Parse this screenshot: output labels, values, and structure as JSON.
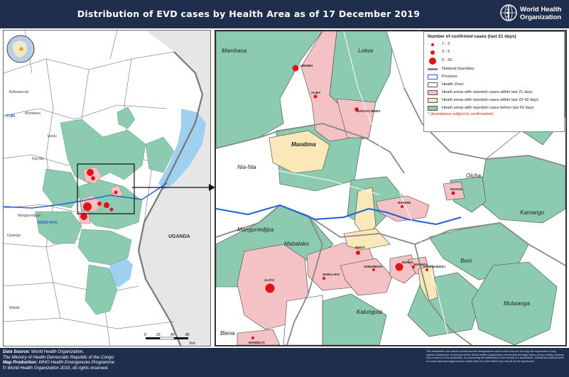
{
  "header": {
    "title": "Distribution of EVD cases by Health Area as of 17 December 2019",
    "org_line1": "World Health",
    "org_line2": "Organization"
  },
  "legend": {
    "title": "Number of confirmed cases (last 21 days)",
    "bubble_classes": [
      "1 - 2",
      "3 - 5",
      "6 - 26"
    ],
    "national_boundary": "National boundary",
    "province": "Province",
    "health_zone": "Health Zone",
    "reported_21": "Heath areas with reported cases within last 21 days",
    "reported_22_42": "Heath areas with reported cases within last 22-42 days",
    "reported_before_42": "Heath areas with reported cases before last 42 days",
    "note": "* (boundaries subject to confirmation)",
    "colors": {
      "reported_21": "#f4c2c4",
      "reported_22_42": "#fbe8b8",
      "reported_before_42": "#8dcbb1",
      "province_line": "#1f5fd1",
      "bubble": "#e01414"
    }
  },
  "inset_map": {
    "country_label": "UGANDA",
    "province_labels": [
      "ITURI",
      "NORD-KIVU"
    ],
    "place_labels": [
      "Mambasa",
      "Nia-Nia",
      "Mangurredjipa",
      "Opienge",
      "Wakile",
      "Bafwasende",
      "Epulu"
    ],
    "scale": {
      "ticks": [
        "0",
        "20",
        "40",
        "80"
      ],
      "unit": "Km"
    }
  },
  "detail_map": {
    "zone_labels": [
      "Mambasa",
      "Lolwa",
      "Mandima",
      "Nia-Nia",
      "Oicha",
      "Kamango",
      "Mangurredjipa",
      "Mabalako",
      "Beni",
      "Mutwanga",
      "Kalunguta",
      "Biena"
    ],
    "area_labels": [
      "LWEMBA",
      "ALIMA",
      "BIAKATO MINES",
      "MASOSI",
      "MAKERE",
      "BINGO",
      "SUMUMBAKI",
      "MABALAKO",
      "ALOYA",
      "BUNDJI",
      "MANDELYA",
      "NGILINGA",
      "KANZULINZULI"
    ]
  },
  "footer": {
    "data_source_label": "Data Source:",
    "data_source": "World Health Organization,",
    "ministry": "The Ministry of Health Democratic Republic of the Congo",
    "map_production_label": "Map Production:",
    "map_production": "WHO Health Emergencies Programme",
    "copyright": "© World Health Organization 2019, All rights reserved.",
    "disclaimer": "The boundaries and names shown and the designations used on this map do not imply the expression of any opinion whatsoever on the part of the World Health Organization concerning the legal status of any country, territory, city or area or of its authorities, or concerning the delimitation of its frontiers or boundaries. Dotted and dashed lines on maps represent approximate border lines for which there may not yet be full agreement."
  }
}
